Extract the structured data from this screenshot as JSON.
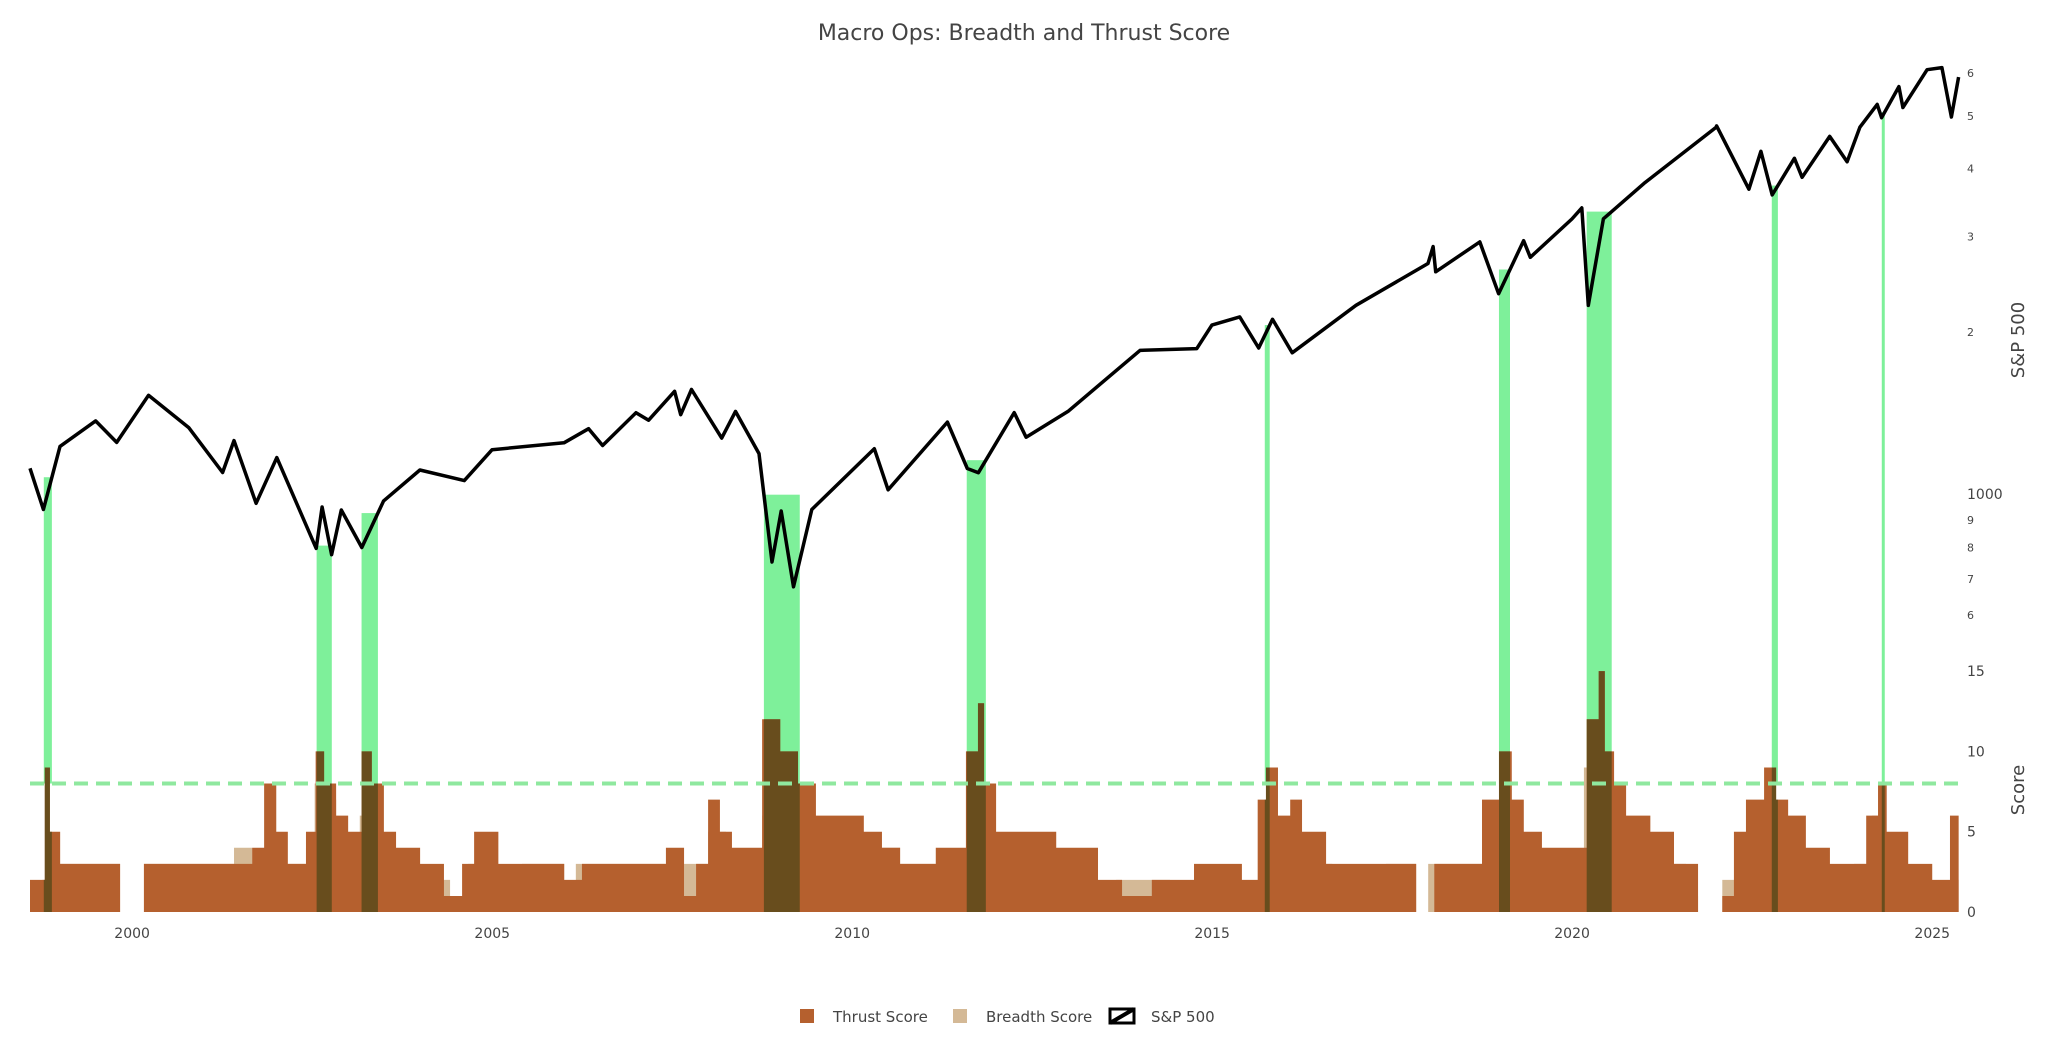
{
  "chart_data": {
    "title": "Macro Ops: Breadth and Thrust Score",
    "type": "area",
    "x_axis": {
      "type": "date",
      "range": [
        "1998-08-01",
        "2025-06-01"
      ],
      "tick_labels": [
        "2000",
        "2005",
        "2010",
        "2015",
        "2020",
        "2025"
      ]
    },
    "top_panel": {
      "axis_title": "S&P 500",
      "scale": "log",
      "range": [
        540,
        6400
      ],
      "tick_labels": [
        {
          "value": 600,
          "label": "6"
        },
        {
          "value": 700,
          "label": "7"
        },
        {
          "value": 800,
          "label": "8"
        },
        {
          "value": 900,
          "label": "9"
        },
        {
          "value": 1000,
          "label": "1000"
        },
        {
          "value": 2000,
          "label": "2"
        },
        {
          "value": 3000,
          "label": "3"
        },
        {
          "value": 4000,
          "label": "4"
        },
        {
          "value": 5000,
          "label": "5"
        },
        {
          "value": 6000,
          "label": "6"
        }
      ]
    },
    "bottom_panel": {
      "axis_title": "Score",
      "range": [
        0,
        16
      ],
      "tick_labels": [
        "0",
        "5",
        "10",
        "15"
      ],
      "threshold": 8
    },
    "legend": {
      "placement": "bottom-center",
      "entries": [
        {
          "label": "Thrust Score",
          "color": "#b5602e",
          "kind": "square"
        },
        {
          "label": "Breadth Score",
          "color": "#d4b996",
          "kind": "square"
        },
        {
          "label": "S&P 500",
          "color": "#000000",
          "kind": "line"
        }
      ]
    },
    "colors": {
      "thrust": "#b5602e",
      "breadth": "#d4b996",
      "signal": "#7ef09a",
      "overlap": "#5a4a1a",
      "sp500": "#000000",
      "threshold": "#8fe89f"
    },
    "signal_windows": [
      {
        "start": "1998-10-10",
        "end": "1998-11-20"
      },
      {
        "start": "2002-07-25",
        "end": "2002-10-10"
      },
      {
        "start": "2003-03-10",
        "end": "2003-06-01"
      },
      {
        "start": "2008-10-10",
        "end": "2009-04-10"
      },
      {
        "start": "2011-08-05",
        "end": "2011-11-10"
      },
      {
        "start": "2015-09-25",
        "end": "2015-10-20"
      },
      {
        "start": "2018-12-26",
        "end": "2019-02-20"
      },
      {
        "start": "2020-03-15",
        "end": "2020-07-20"
      },
      {
        "start": "2022-10-10",
        "end": "2022-11-10"
      },
      {
        "start": "2024-04-20",
        "end": "2024-05-05"
      }
    ],
    "sp500_series": [
      [
        "1998-08-01",
        1120
      ],
      [
        "1998-10-08",
        940
      ],
      [
        "1998-12-31",
        1229
      ],
      [
        "1999-06-30",
        1370
      ],
      [
        "1999-10-15",
        1250
      ],
      [
        "2000-03-24",
        1527
      ],
      [
        "2000-10-15",
        1330
      ],
      [
        "2001-04-04",
        1100
      ],
      [
        "2001-06-01",
        1260
      ],
      [
        "2001-09-21",
        965
      ],
      [
        "2002-01-04",
        1172
      ],
      [
        "2002-07-23",
        797
      ],
      [
        "2002-08-22",
        950
      ],
      [
        "2002-10-09",
        776
      ],
      [
        "2002-11-27",
        938
      ],
      [
        "2003-03-11",
        800
      ],
      [
        "2003-06-30",
        975
      ],
      [
        "2003-12-31",
        1112
      ],
      [
        "2004-08-12",
        1063
      ],
      [
        "2004-12-31",
        1212
      ],
      [
        "2005-12-31",
        1248
      ],
      [
        "2006-05-05",
        1325
      ],
      [
        "2006-07-15",
        1234
      ],
      [
        "2006-12-31",
        1418
      ],
      [
        "2007-03-05",
        1374
      ],
      [
        "2007-07-15",
        1553
      ],
      [
        "2007-08-15",
        1406
      ],
      [
        "2007-10-09",
        1565
      ],
      [
        "2008-03-10",
        1273
      ],
      [
        "2008-05-19",
        1426
      ],
      [
        "2008-09-15",
        1192
      ],
      [
        "2008-11-20",
        752
      ],
      [
        "2009-01-06",
        934
      ],
      [
        "2009-03-09",
        677
      ],
      [
        "2009-06-10",
        940
      ],
      [
        "2010-04-23",
        1217
      ],
      [
        "2010-07-02",
        1022
      ],
      [
        "2011-04-29",
        1363
      ],
      [
        "2011-08-08",
        1119
      ],
      [
        "2011-10-03",
        1099
      ],
      [
        "2012-04-02",
        1419
      ],
      [
        "2012-06-01",
        1278
      ],
      [
        "2012-12-31",
        1426
      ],
      [
        "2013-12-31",
        1848
      ],
      [
        "2014-10-15",
        1862
      ],
      [
        "2014-12-31",
        2058
      ],
      [
        "2015-05-21",
        2131
      ],
      [
        "2015-08-25",
        1867
      ],
      [
        "2015-11-03",
        2109
      ],
      [
        "2016-02-11",
        1829
      ],
      [
        "2016-12-31",
        2238
      ],
      [
        "2017-12-31",
        2673
      ],
      [
        "2018-01-26",
        2872
      ],
      [
        "2018-02-08",
        2581
      ],
      [
        "2018-09-20",
        2930
      ],
      [
        "2018-12-24",
        2351
      ],
      [
        "2019-04-30",
        2945
      ],
      [
        "2019-06-03",
        2744
      ],
      [
        "2019-12-31",
        3230
      ],
      [
        "2020-02-19",
        3386
      ],
      [
        "2020-03-23",
        2237
      ],
      [
        "2020-06-08",
        3232
      ],
      [
        "2020-12-31",
        3756
      ],
      [
        "2021-12-31",
        4766
      ],
      [
        "2022-01-03",
        4796
      ],
      [
        "2022-06-16",
        3666
      ],
      [
        "2022-08-16",
        4305
      ],
      [
        "2022-10-12",
        3577
      ],
      [
        "2023-02-02",
        4179
      ],
      [
        "2023-03-13",
        3855
      ],
      [
        "2023-07-31",
        4588
      ],
      [
        "2023-10-27",
        4117
      ],
      [
        "2023-12-31",
        4770
      ],
      [
        "2024-03-28",
        5254
      ],
      [
        "2024-04-19",
        4967
      ],
      [
        "2024-07-16",
        5667
      ],
      [
        "2024-08-05",
        5186
      ],
      [
        "2024-12-06",
        6090
      ],
      [
        "2025-02-19",
        6144
      ],
      [
        "2025-04-08",
        4982
      ],
      [
        "2025-05-15",
        5900
      ]
    ],
    "breadth_series": [
      [
        "1998-08-01",
        0
      ],
      [
        "1998-10-01",
        2
      ],
      [
        "1998-12-01",
        3
      ],
      [
        "1999-11-01",
        0
      ],
      [
        "2000-03-01",
        3
      ],
      [
        "2001-01-01",
        3
      ],
      [
        "2001-06-01",
        4
      ],
      [
        "2001-09-01",
        3
      ],
      [
        "2001-11-01",
        8
      ],
      [
        "2002-01-01",
        3
      ],
      [
        "2002-06-01",
        4
      ],
      [
        "2002-07-15",
        8
      ],
      [
        "2002-10-01",
        7
      ],
      [
        "2002-11-01",
        4
      ],
      [
        "2003-03-01",
        6
      ],
      [
        "2003-05-01",
        8
      ],
      [
        "2003-07-01",
        3
      ],
      [
        "2004-01-01",
        2
      ],
      [
        "2004-06-01",
        0
      ],
      [
        "2004-09-01",
        3
      ],
      [
        "2005-02-01",
        2
      ],
      [
        "2005-06-01",
        3
      ],
      [
        "2006-01-01",
        1
      ],
      [
        "2006-03-01",
        3
      ],
      [
        "2007-06-01",
        0
      ],
      [
        "2007-09-01",
        3
      ],
      [
        "2008-01-01",
        5
      ],
      [
        "2008-04-01",
        3
      ],
      [
        "2008-10-01",
        6
      ],
      [
        "2009-04-01",
        5
      ],
      [
        "2009-07-01",
        3
      ],
      [
        "2010-06-01",
        4
      ],
      [
        "2010-09-01",
        3
      ],
      [
        "2011-06-01",
        3
      ],
      [
        "2011-08-01",
        8
      ],
      [
        "2011-11-01",
        4
      ],
      [
        "2012-03-01",
        3
      ],
      [
        "2012-11-01",
        2
      ],
      [
        "2013-06-01",
        1
      ],
      [
        "2013-09-01",
        2
      ],
      [
        "2014-06-01",
        1
      ],
      [
        "2014-10-01",
        2
      ],
      [
        "2015-06-01",
        1
      ],
      [
        "2015-09-01",
        4
      ],
      [
        "2015-11-01",
        3
      ],
      [
        "2016-01-01",
        5
      ],
      [
        "2016-03-01",
        3
      ],
      [
        "2016-09-01",
        2
      ],
      [
        "2017-06-01",
        3
      ],
      [
        "2017-11-01",
        0
      ],
      [
        "2018-01-01",
        3
      ],
      [
        "2018-06-01",
        3
      ],
      [
        "2018-10-01",
        5
      ],
      [
        "2019-01-01",
        8
      ],
      [
        "2019-03-01",
        5
      ],
      [
        "2019-05-01",
        3
      ],
      [
        "2019-12-01",
        3
      ],
      [
        "2020-03-01",
        9
      ],
      [
        "2020-05-01",
        7
      ],
      [
        "2020-08-01",
        4
      ],
      [
        "2021-06-01",
        3
      ],
      [
        "2021-08-01",
        1
      ],
      [
        "2021-10-01",
        0
      ],
      [
        "2022-02-01",
        2
      ],
      [
        "2022-05-01",
        4
      ],
      [
        "2022-09-01",
        5
      ],
      [
        "2022-12-01",
        4
      ],
      [
        "2023-03-01",
        3
      ],
      [
        "2023-06-01",
        2
      ],
      [
        "2023-12-01",
        3
      ],
      [
        "2024-03-01",
        6
      ],
      [
        "2024-05-01",
        3
      ],
      [
        "2024-09-01",
        2
      ],
      [
        "2025-01-01",
        1
      ],
      [
        "2025-04-01",
        2
      ],
      [
        "2025-05-15",
        0
      ]
    ],
    "thrust_series": [
      [
        "1998-08-01",
        2
      ],
      [
        "1998-10-15",
        9
      ],
      [
        "1998-11-10",
        5
      ],
      [
        "1999-01-01",
        3
      ],
      [
        "1999-11-01",
        0
      ],
      [
        "2000-03-01",
        3
      ],
      [
        "2001-01-01",
        3
      ],
      [
        "2001-09-01",
        4
      ],
      [
        "2001-11-01",
        8
      ],
      [
        "2002-01-01",
        5
      ],
      [
        "2002-03-01",
        3
      ],
      [
        "2002-06-01",
        5
      ],
      [
        "2002-07-20",
        10
      ],
      [
        "2002-09-01",
        8
      ],
      [
        "2002-11-01",
        6
      ],
      [
        "2003-01-01",
        5
      ],
      [
        "2003-03-10",
        10
      ],
      [
        "2003-05-01",
        8
      ],
      [
        "2003-07-01",
        5
      ],
      [
        "2003-09-01",
        4
      ],
      [
        "2004-01-01",
        3
      ],
      [
        "2004-05-01",
        1
      ],
      [
        "2004-08-01",
        3
      ],
      [
        "2004-10-01",
        5
      ],
      [
        "2005-02-01",
        3
      ],
      [
        "2006-01-01",
        2
      ],
      [
        "2006-04-01",
        3
      ],
      [
        "2007-06-01",
        4
      ],
      [
        "2007-09-01",
        1
      ],
      [
        "2007-11-01",
        3
      ],
      [
        "2008-01-01",
        7
      ],
      [
        "2008-03-01",
        5
      ],
      [
        "2008-05-01",
        4
      ],
      [
        "2008-10-01",
        12
      ],
      [
        "2009-01-01",
        10
      ],
      [
        "2009-04-01",
        8
      ],
      [
        "2009-07-01",
        6
      ],
      [
        "2010-03-01",
        5
      ],
      [
        "2010-06-01",
        4
      ],
      [
        "2010-09-01",
        3
      ],
      [
        "2011-03-01",
        4
      ],
      [
        "2011-08-01",
        10
      ],
      [
        "2011-10-01",
        13
      ],
      [
        "2011-11-01",
        8
      ],
      [
        "2012-01-01",
        5
      ],
      [
        "2012-06-01",
        5
      ],
      [
        "2012-11-01",
        4
      ],
      [
        "2013-06-01",
        2
      ],
      [
        "2013-10-01",
        1
      ],
      [
        "2014-03-01",
        2
      ],
      [
        "2014-10-01",
        3
      ],
      [
        "2015-06-01",
        2
      ],
      [
        "2015-08-20",
        7
      ],
      [
        "2015-10-01",
        9
      ],
      [
        "2015-12-01",
        6
      ],
      [
        "2016-02-01",
        7
      ],
      [
        "2016-04-01",
        5
      ],
      [
        "2016-08-01",
        3
      ],
      [
        "2017-06-01",
        3
      ],
      [
        "2017-11-01",
        0
      ],
      [
        "2018-02-01",
        3
      ],
      [
        "2018-06-01",
        3
      ],
      [
        "2018-10-01",
        7
      ],
      [
        "2018-12-26",
        10
      ],
      [
        "2019-03-01",
        7
      ],
      [
        "2019-05-01",
        5
      ],
      [
        "2019-08-01",
        4
      ],
      [
        "2020-01-01",
        4
      ],
      [
        "2020-03-15",
        12
      ],
      [
        "2020-05-15",
        15
      ],
      [
        "2020-06-15",
        10
      ],
      [
        "2020-08-01",
        8
      ],
      [
        "2020-10-01",
        6
      ],
      [
        "2021-02-01",
        5
      ],
      [
        "2021-06-01",
        3
      ],
      [
        "2021-10-01",
        0
      ],
      [
        "2022-02-01",
        1
      ],
      [
        "2022-04-01",
        5
      ],
      [
        "2022-06-01",
        7
      ],
      [
        "2022-09-01",
        9
      ],
      [
        "2022-11-01",
        7
      ],
      [
        "2023-01-01",
        6
      ],
      [
        "2023-04-01",
        4
      ],
      [
        "2023-08-01",
        3
      ],
      [
        "2023-12-01",
        3
      ],
      [
        "2024-02-01",
        6
      ],
      [
        "2024-04-01",
        8
      ],
      [
        "2024-05-15",
        5
      ],
      [
        "2024-09-01",
        3
      ],
      [
        "2025-01-01",
        2
      ],
      [
        "2025-04-01",
        6
      ],
      [
        "2025-05-15",
        0
      ]
    ]
  }
}
